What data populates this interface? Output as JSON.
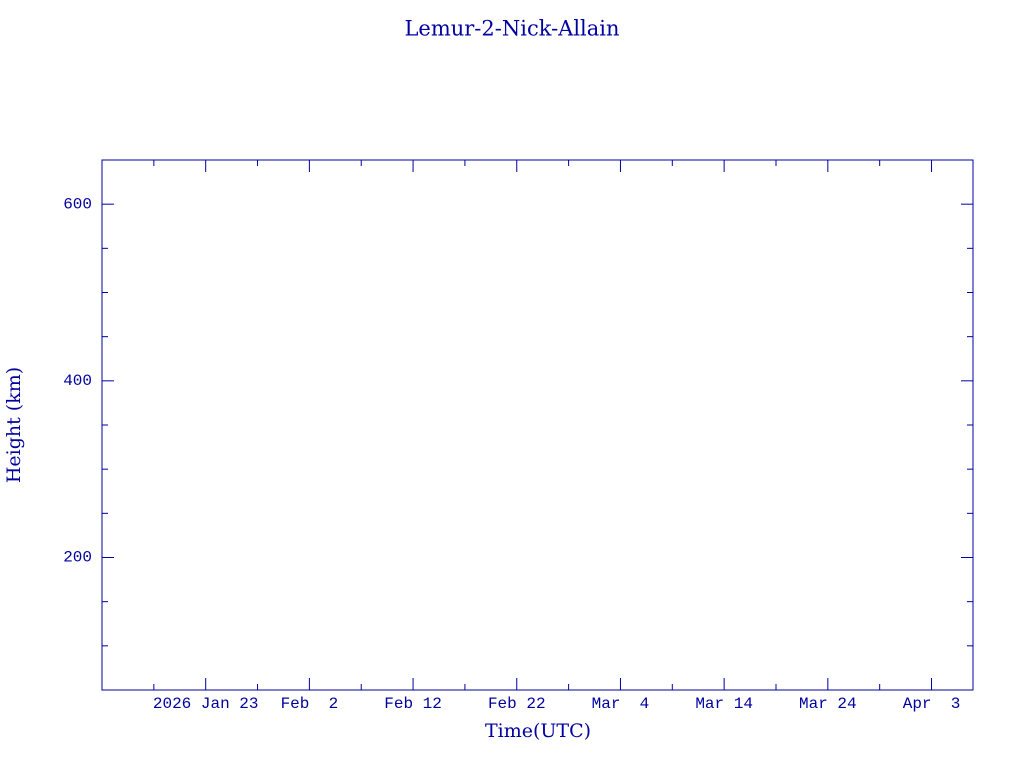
{
  "chart_data": {
    "type": "line",
    "title": "Lemur-2-Nick-Allain",
    "x_label": "Time(UTC)",
    "y_label": "Height (km)",
    "series": [],
    "xlim": [
      "2026-01-13",
      "2026-04-07"
    ],
    "xticks": [
      {
        "value": "2026-01-23",
        "label": "2026 Jan 23"
      },
      {
        "value": "2026-02-02",
        "label": "Feb  2"
      },
      {
        "value": "2026-02-12",
        "label": "Feb 12"
      },
      {
        "value": "2026-02-22",
        "label": "Feb 22"
      },
      {
        "value": "2026-03-04",
        "label": "Mar  4"
      },
      {
        "value": "2026-03-14",
        "label": "Mar 14"
      },
      {
        "value": "2026-03-24",
        "label": "Mar 24"
      },
      {
        "value": "2026-04-03",
        "label": "Apr  3"
      }
    ],
    "ylim": [
      50,
      650
    ],
    "yticks": [
      200,
      400,
      600
    ],
    "grid": false,
    "color": "#0000a0"
  }
}
